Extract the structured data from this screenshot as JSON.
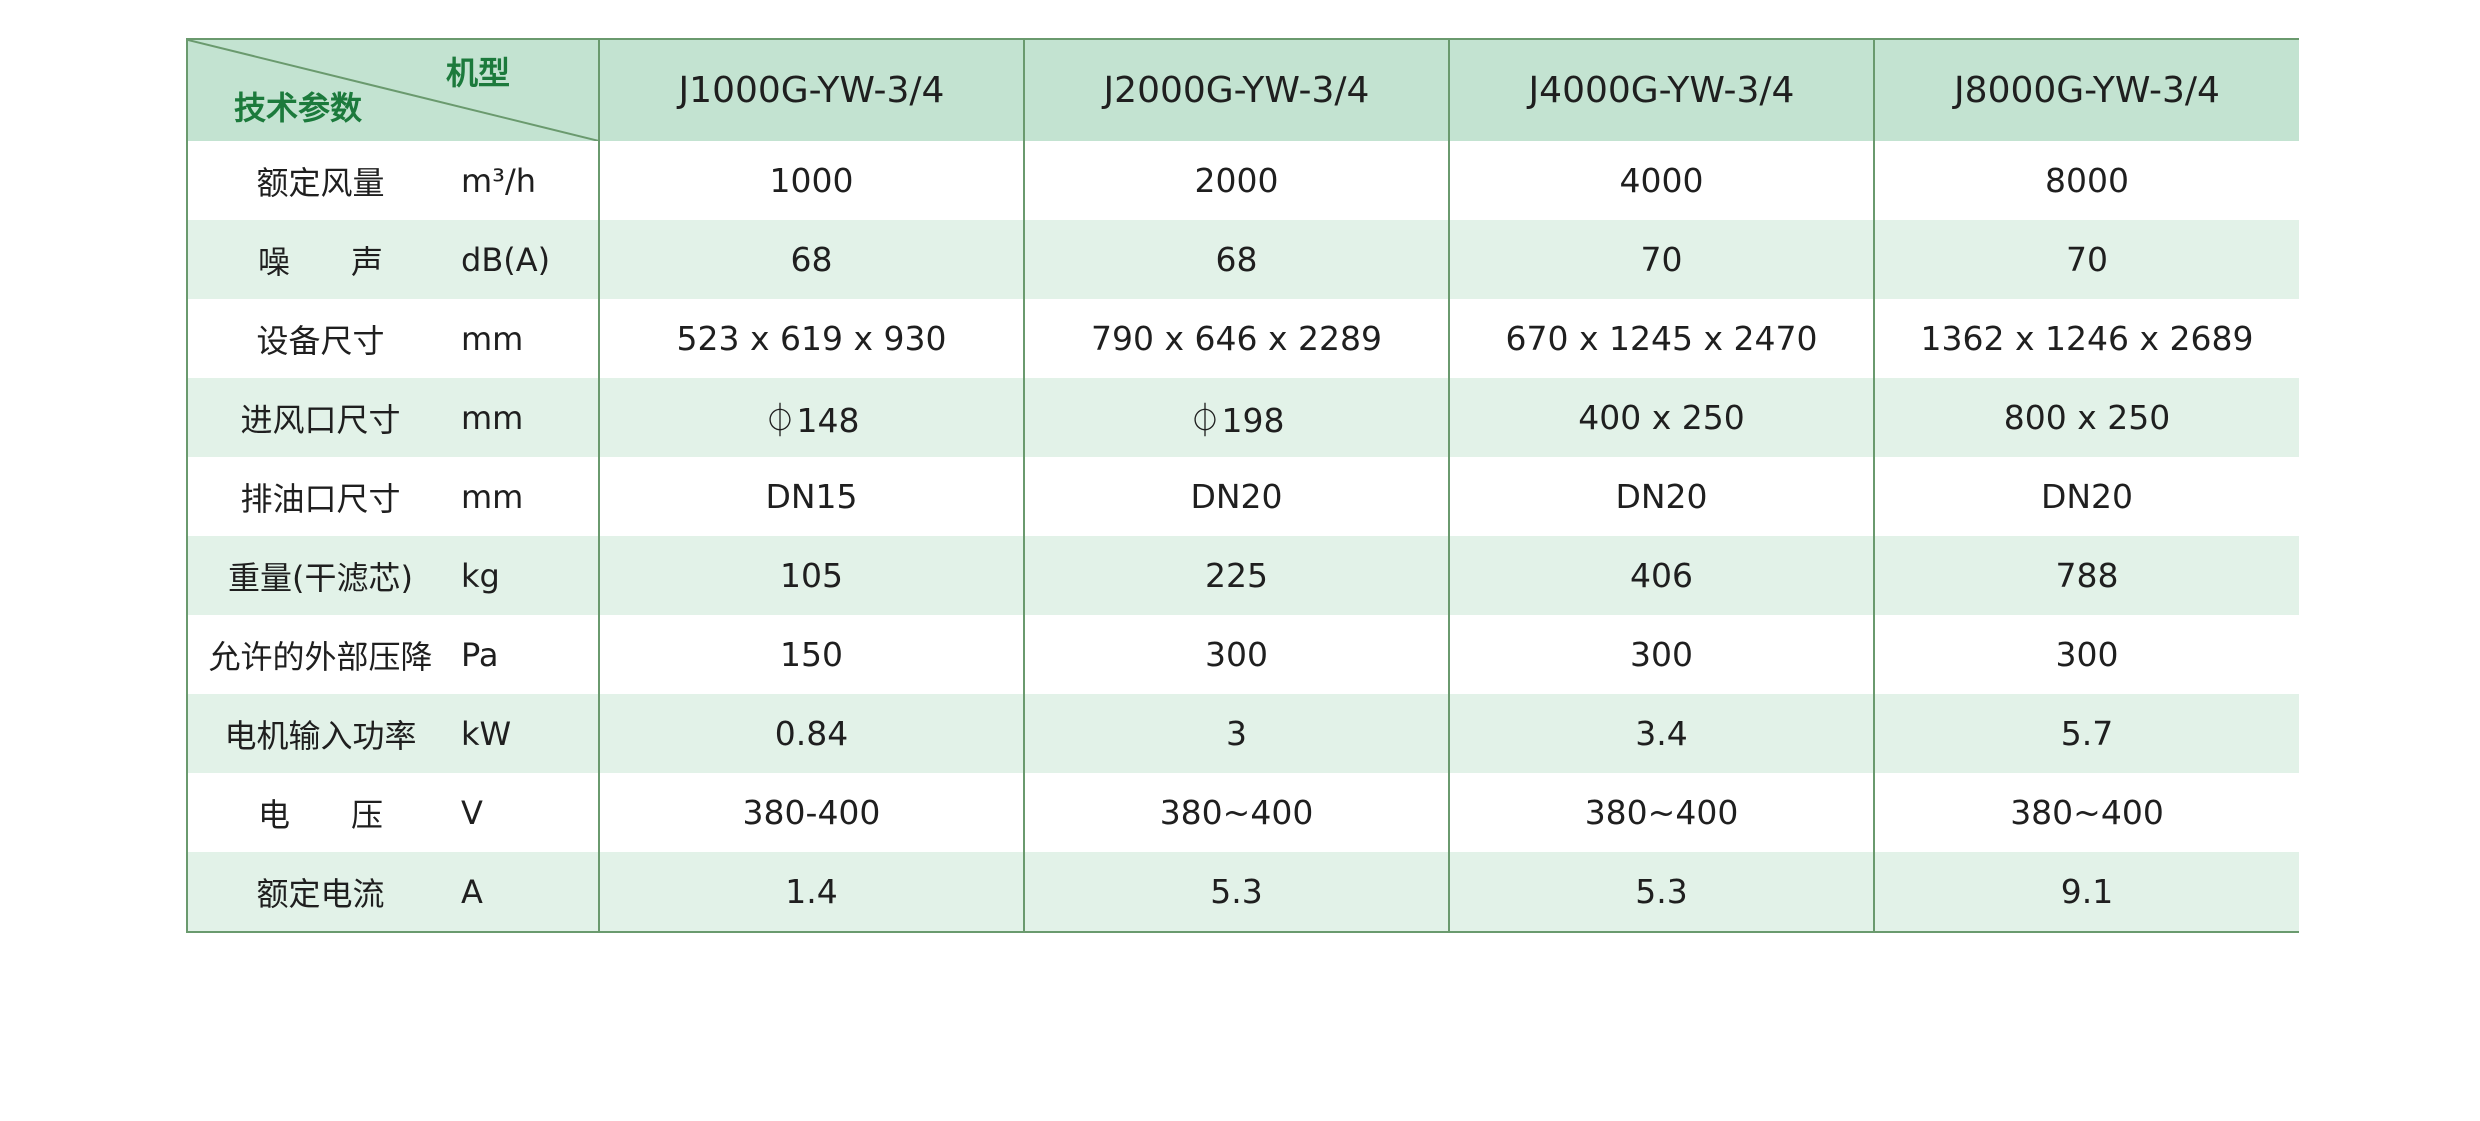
{
  "header": {
    "corner_top": "机型",
    "corner_bottom": "技术参数",
    "models": [
      "J1000G-YW-3/4",
      "J2000G-YW-3/4",
      "J4000G-YW-3/4",
      "J8000G-YW-3/4"
    ]
  },
  "rows": [
    {
      "name": "额定风量",
      "unit": "m³/h",
      "values": [
        "1000",
        "2000",
        "4000",
        "8000"
      ]
    },
    {
      "name": "噪      声",
      "unit": "dB(A)",
      "values": [
        "68",
        "68",
        "70",
        "70"
      ]
    },
    {
      "name": "设备尺寸",
      "unit": "mm",
      "values": [
        "523 x 619 x 930",
        "790 x 646 x 2289",
        "670 x 1245 x 2470",
        "1362 x 1246 x 2689"
      ]
    },
    {
      "name": "进风口尺寸",
      "unit": "mm",
      "values": [
        "⏀148",
        "⏀198",
        "400 x 250",
        "800 x 250"
      ]
    },
    {
      "name": "排油口尺寸",
      "unit": "mm",
      "values": [
        "DN15",
        "DN20",
        "DN20",
        "DN20"
      ]
    },
    {
      "name": "重量(干滤芯)",
      "unit": "kg",
      "values": [
        "105",
        "225",
        "406",
        "788"
      ]
    },
    {
      "name": "允许的外部压降",
      "unit": "Pa",
      "values": [
        "150",
        "300",
        "300",
        "300"
      ]
    },
    {
      "name": "电机输入功率",
      "unit": "kW",
      "values": [
        "0.84",
        "3",
        "3.4",
        "5.7"
      ]
    },
    {
      "name": "电      压",
      "unit": "V",
      "values": [
        "380-400",
        "380~400",
        "380~400",
        "380~400"
      ]
    },
    {
      "name": "额定电流",
      "unit": "A",
      "values": [
        "1.4",
        "5.3",
        "5.3",
        "9.1"
      ]
    }
  ]
}
